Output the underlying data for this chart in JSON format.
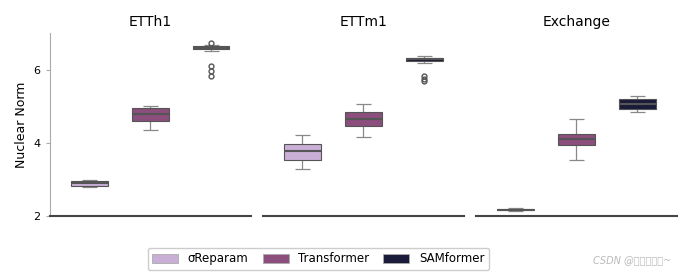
{
  "titles": [
    "ETTh1",
    "ETTm1",
    "Exchange"
  ],
  "ylabel": "Nuclear Norm",
  "ylim": [
    2,
    7.0
  ],
  "yticks": [
    2,
    4,
    6
  ],
  "colors": {
    "sigma": "#c9aed6",
    "transformer": "#8b4e7d",
    "samformer": "#1a1a3a"
  },
  "legend_labels": [
    "σReparam",
    "Transformer",
    "SAMformer"
  ],
  "ETTh1": {
    "sigma": {
      "med": 2.9,
      "q1": 2.84,
      "q3": 2.96,
      "whislo": 2.8,
      "whishi": 2.99,
      "fliers": []
    },
    "transformer": {
      "med": 4.8,
      "q1": 4.6,
      "q3": 4.95,
      "whislo": 4.35,
      "whishi": 5.0,
      "fliers": []
    },
    "samformer": {
      "med": 6.6,
      "q1": 6.55,
      "q3": 6.65,
      "whislo": 6.5,
      "whishi": 6.68,
      "fliers": [
        5.82,
        5.97,
        6.1,
        6.73
      ]
    }
  },
  "ETTm1": {
    "sigma": {
      "med": 3.78,
      "q1": 3.55,
      "q3": 3.97,
      "whislo": 3.3,
      "whishi": 4.22,
      "fliers": []
    },
    "transformer": {
      "med": 4.65,
      "q1": 4.45,
      "q3": 4.85,
      "whislo": 4.15,
      "whishi": 5.05,
      "fliers": []
    },
    "samformer": {
      "med": 6.28,
      "q1": 6.23,
      "q3": 6.33,
      "whislo": 6.18,
      "whishi": 6.37,
      "fliers": [
        5.68,
        5.75,
        5.82
      ]
    }
  },
  "Exchange": {
    "sigma": {
      "med": 2.18,
      "q1": 2.16,
      "q3": 2.2,
      "whislo": 2.14,
      "whishi": 2.22,
      "fliers": []
    },
    "transformer": {
      "med": 4.1,
      "q1": 3.95,
      "q3": 4.25,
      "whislo": 3.55,
      "whishi": 4.65,
      "fliers": []
    },
    "samformer": {
      "med": 5.05,
      "q1": 4.92,
      "q3": 5.2,
      "whislo": 4.85,
      "whishi": 5.28,
      "fliers": []
    }
  },
  "background_color": "#ffffff",
  "watermark": "CSDN @幼儿园大哥~"
}
